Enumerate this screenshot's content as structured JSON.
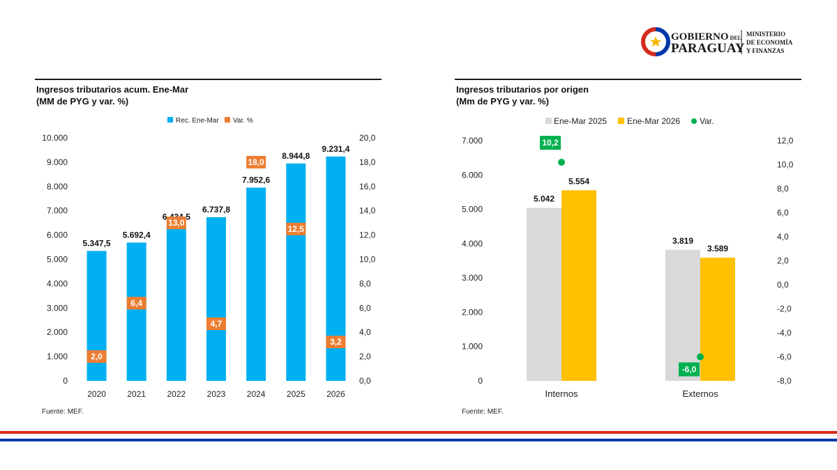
{
  "header": {
    "logo_text": {
      "line1": "GOBIERNO",
      "line1_small": "DEL",
      "line2": "PARAGUAY",
      "ministry": [
        "MINISTERIO",
        "DE ECONOMÍA",
        "Y FINANZAS"
      ]
    }
  },
  "left_panel": {
    "title_line1": "Ingresos tributarios acum. Ene-Mar",
    "title_line2": "(MM de PYG y var. %)",
    "source": "Fuente: MEF."
  },
  "right_panel": {
    "title_line1": "Ingresos tributarios por origen",
    "title_line2": "(Mm de PYG y var. %)",
    "source": "Fuente: MEF."
  },
  "colors": {
    "bar_blue": "#00B0F0",
    "var_orange": "#ED7D31",
    "grey_2025": "#D9D9D9",
    "yellow_2026": "#FFC000",
    "var_green": "#00B050",
    "flag_red": "#D52B1E",
    "flag_blue": "#0038A8"
  },
  "chart_data": [
    {
      "type": "bar",
      "categories": [
        "2020",
        "2021",
        "2022",
        "2023",
        "2024",
        "2025",
        "2026"
      ],
      "series": [
        {
          "name": "Rec. Ene-Mar",
          "axis": "left",
          "values": [
            5347.5,
            5692.4,
            6434.5,
            6737.8,
            7952.6,
            8944.8,
            9231.4
          ],
          "labels": [
            "5.347,5",
            "5.692,4",
            "6.434,5",
            "6.737,8",
            "7.952,6",
            "8.944,8",
            "9.231,4"
          ]
        },
        {
          "name": "Var. %",
          "axis": "right",
          "marker": "square",
          "values": [
            2.0,
            6.4,
            13.0,
            4.7,
            18.0,
            12.5,
            3.2
          ],
          "labels": [
            "2,0",
            "6,4",
            "13,0",
            "4,7",
            "18,0",
            "12,5",
            "3,2"
          ]
        }
      ],
      "ylim": [
        0,
        10000
      ],
      "yticks": [
        "0",
        "1.000",
        "2.000",
        "3.000",
        "4.000",
        "5.000",
        "6.000",
        "7.000",
        "8.000",
        "9.000",
        "10.000"
      ],
      "y2lim": [
        0,
        20
      ],
      "y2ticks": [
        "0,0",
        "2,0",
        "4,0",
        "6,0",
        "8,0",
        "10,0",
        "12,0",
        "14,0",
        "16,0",
        "18,0",
        "20,0"
      ],
      "legend": "top-center",
      "grid": false
    },
    {
      "type": "bar",
      "categories": [
        "Internos",
        "Externos"
      ],
      "series": [
        {
          "name": "Ene-Mar 2025",
          "axis": "left",
          "values": [
            5042,
            3819
          ],
          "labels": [
            "5.042",
            "3.819"
          ]
        },
        {
          "name": "Ene-Mar 2026",
          "axis": "left",
          "values": [
            5554,
            3589
          ],
          "labels": [
            "5.554",
            "3.589"
          ]
        },
        {
          "name": "Var.",
          "axis": "right",
          "marker": "circle",
          "values": [
            10.2,
            -6.0
          ],
          "labels": [
            "10,2",
            "-6,0"
          ]
        }
      ],
      "ylim": [
        0,
        7000
      ],
      "yticks": [
        "0",
        "1.000",
        "2.000",
        "3.000",
        "4.000",
        "5.000",
        "6.000",
        "7.000"
      ],
      "y2lim": [
        -8,
        12
      ],
      "y2ticks": [
        "-8,0",
        "-6,0",
        "-4,0",
        "-2,0",
        "0,0",
        "2,0",
        "4,0",
        "6,0",
        "8,0",
        "10,0",
        "12,0"
      ],
      "legend": "top-center",
      "grid": false
    }
  ]
}
